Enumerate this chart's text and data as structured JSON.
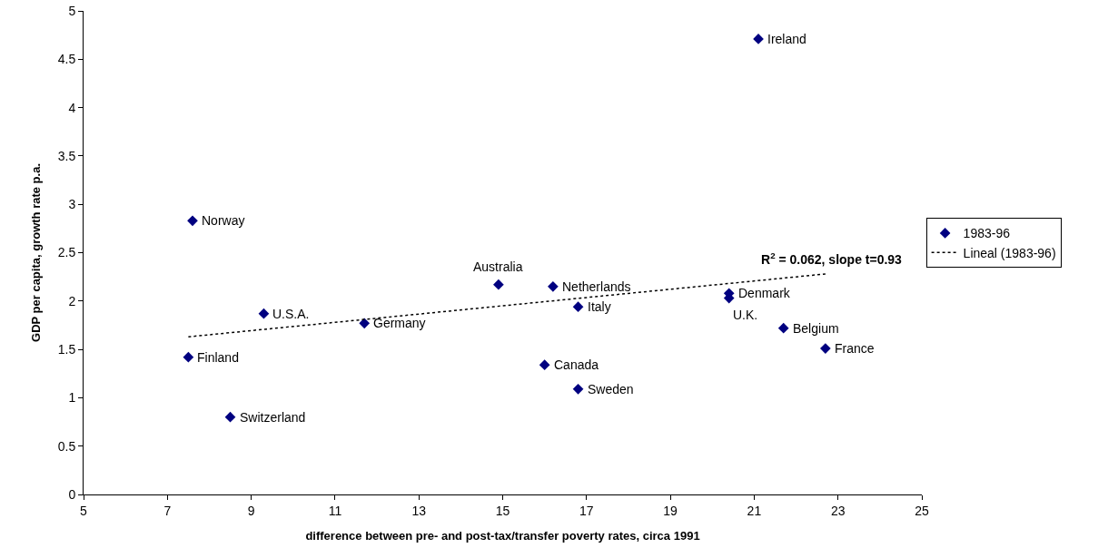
{
  "chart_data": {
    "type": "scatter",
    "xlabel": "difference between pre- and post-tax/transfer poverty rates, circa 1991",
    "ylabel": "GDP per capita, growth rate p.a.",
    "xlim": [
      5,
      25
    ],
    "xticks": [
      5,
      7,
      9,
      11,
      13,
      15,
      17,
      19,
      21,
      23,
      25
    ],
    "ylim": [
      0,
      5
    ],
    "yticks": [
      0,
      0.5,
      1,
      1.5,
      2,
      2.5,
      3,
      3.5,
      4,
      4.5,
      5
    ],
    "grid": false,
    "legend": "right",
    "marker": "diamond",
    "series": [
      {
        "name": "1983-96",
        "color": "#000080",
        "x": [
          21.1,
          7.6,
          14.9,
          16.2,
          20.4,
          20.4,
          9.3,
          11.7,
          16.8,
          21.7,
          22.7,
          7.5,
          16.0,
          16.8,
          8.5
        ],
        "values": [
          4.71,
          2.83,
          2.17,
          2.15,
          2.08,
          2.03,
          1.87,
          1.77,
          1.94,
          1.72,
          1.51,
          1.42,
          1.34,
          1.09,
          0.8
        ]
      },
      {
        "name": "Lineal (1983-96)",
        "type": "line",
        "color": "#000000",
        "line_style": "dotted",
        "marker": "none",
        "x": [
          7.5,
          22.7
        ],
        "values": [
          1.63,
          2.28
        ]
      }
    ],
    "annotations": [
      {
        "text": "Ireland",
        "x": 21.1,
        "y": 4.71
      },
      {
        "text": "Norway",
        "x": 7.6,
        "y": 2.83
      },
      {
        "text": "Australia",
        "x": 14.9,
        "y": 2.17
      },
      {
        "text": "Netherlands",
        "x": 16.2,
        "y": 2.15
      },
      {
        "text": "Denmark",
        "x": 20.4,
        "y": 2.08
      },
      {
        "text": "U.K.",
        "x": 20.4,
        "y": 2.03
      },
      {
        "text": "U.S.A.",
        "x": 9.3,
        "y": 1.87
      },
      {
        "text": "Germany",
        "x": 11.7,
        "y": 1.77
      },
      {
        "text": "Italy",
        "x": 16.8,
        "y": 1.94
      },
      {
        "text": "Belgium",
        "x": 21.7,
        "y": 1.72
      },
      {
        "text": "France",
        "x": 22.7,
        "y": 1.51
      },
      {
        "text": "Finland",
        "x": 7.5,
        "y": 1.42
      },
      {
        "text": "Canada",
        "x": 16.0,
        "y": 1.34
      },
      {
        "text": "Sweden",
        "x": 16.8,
        "y": 1.09
      },
      {
        "text": "Switzerland",
        "x": 8.5,
        "y": 0.8
      },
      {
        "text": "R$^{2}$ = 0.062, slope t=0.93",
        "x": 22.7,
        "y": 2.28
      }
    ]
  }
}
